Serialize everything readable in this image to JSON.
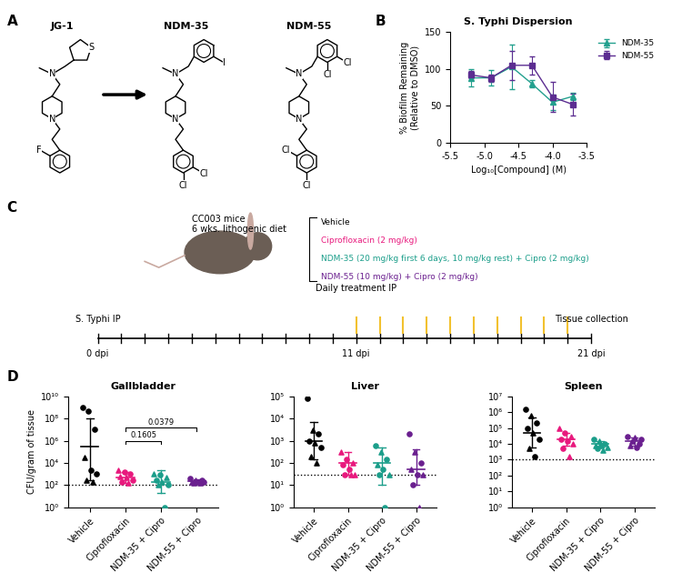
{
  "panel_labels": [
    "A",
    "B",
    "C",
    "D"
  ],
  "structures": [
    {
      "name": "JG-1",
      "atoms": [
        "N",
        "S",
        "N",
        "F"
      ]
    },
    {
      "name": "NDM-35",
      "atoms": [
        "N",
        "I",
        "N",
        "Cl",
        "Cl"
      ]
    },
    {
      "name": "NDM-55",
      "atoms": [
        "N",
        "Cl",
        "Cl",
        "N",
        "Cl",
        "Cl"
      ]
    }
  ],
  "timeline": {
    "mice": "CC003 mice",
    "diet": "6 wks. lithogenic diet",
    "treatments": [
      {
        "label": "Vehicle",
        "color": "#000000"
      },
      {
        "label": "Ciprofloxacin (2 mg/kg)",
        "color": "#e8197d"
      },
      {
        "label": "NDM-35 (20 mg/kg first 6 days, 10 mg/kg rest) + Cipro (2 mg/kg)",
        "color": "#1b9e8a"
      },
      {
        "label": "NDM-55 (10 mg/kg) + Cipro (2 mg/kg)",
        "color": "#6a1f8f"
      }
    ],
    "days": 21,
    "events": [
      {
        "day": 0,
        "label": "S. Typhi IP",
        "tick_label": "0 dpi"
      },
      {
        "day": 11,
        "label": "Daily treatment IP",
        "tick_label": "11 dpi"
      },
      {
        "day": 21,
        "label": "Tissue collection",
        "tick_label": "21 dpi"
      }
    ],
    "treatment_days": [
      11,
      12,
      13,
      14,
      15,
      16,
      17,
      18,
      19,
      20
    ],
    "treatment_color": "#f2c12e"
  },
  "chart_data": [
    {
      "type": "line",
      "title": "S. Typhi Dispersion",
      "x_label": "Log₁₀[Compound] (M)",
      "y_label": "% Biofilm Remaining\n(Relative to DMSO)",
      "xlim": [
        -5.5,
        -3.5
      ],
      "xticks": [
        -5.5,
        -5.0,
        -4.5,
        -4.0,
        -3.5
      ],
      "ylim": [
        0,
        150
      ],
      "yticks": [
        0,
        50,
        100,
        150
      ],
      "legend": "right",
      "x": [
        -5.2,
        -4.9,
        -4.6,
        -4.3,
        -4.0,
        -3.7
      ],
      "series": [
        {
          "name": "NDM-35",
          "color": "#23a08e",
          "marker": "triangle",
          "values": [
            88,
            88,
            103,
            80,
            55,
            63
          ],
          "error": [
            12,
            10,
            30,
            5,
            10,
            5
          ]
        },
        {
          "name": "NDM-55",
          "color": "#5c2d91",
          "marker": "square",
          "values": [
            92,
            88,
            105,
            105,
            62,
            52
          ],
          "error": [
            5,
            5,
            20,
            12,
            20,
            15
          ]
        }
      ]
    },
    {
      "type": "scatter",
      "title": "Gallbladder",
      "y_label": "CFU/gram of tissue",
      "categories": [
        "Vehicle",
        "Ciprofloxacin",
        "NDM-35 + Cipro",
        "NDM-55 + Cipro"
      ],
      "log": "y",
      "ylim": [
        1,
        10000000000.0
      ],
      "yticks": [
        {
          "value": 1,
          "label": "10⁰"
        },
        {
          "value": 100,
          "label": "10²"
        },
        {
          "value": 10000,
          "label": "10⁴"
        },
        {
          "value": 1000000,
          "label": "10⁶"
        },
        {
          "value": 100000000,
          "label": "10⁸"
        },
        {
          "value": 10000000000.0,
          "label": "10¹⁰"
        }
      ],
      "detection_limit": 100,
      "groups": [
        {
          "color": "#000000",
          "values": [
            1000000000.0,
            500000000.0,
            10000000.0,
            30000,
            2000,
            1000,
            300,
            200
          ],
          "marker": [
            "circle",
            "circle",
            "circle",
            "triangle",
            "circle",
            "circle",
            "triangle",
            "triangle"
          ],
          "mean": 300000,
          "error": [
            300,
            100000000
          ]
        },
        {
          "color": "#e8197d",
          "values": [
            2000,
            1500,
            1000,
            600,
            500,
            300,
            200,
            150
          ],
          "marker": [
            "triangle",
            "circle",
            "circle",
            "triangle",
            "triangle",
            "circle",
            "circle",
            "triangle"
          ],
          "mean": 500,
          "error": [
            150,
            1500
          ]
        },
        {
          "color": "#1b9e8a",
          "values": [
            1000,
            800,
            500,
            300,
            200,
            100,
            100,
            1
          ],
          "marker": [
            "triangle",
            "circle",
            "triangle",
            "circle",
            "triangle",
            "circle",
            "triangle",
            "circle"
          ],
          "mean": 200,
          "error": [
            20,
            2000
          ]
        },
        {
          "color": "#6a1f8f",
          "values": [
            400,
            300,
            300,
            200,
            200,
            200,
            150,
            150
          ],
          "marker": [
            "circle",
            "triangle",
            "circle",
            "triangle",
            "circle",
            "circle",
            "triangle",
            "triangle"
          ],
          "mean": 230,
          "error": [
            150,
            350
          ]
        }
      ],
      "comparisons": [
        {
          "between": [
            "Ciprofloxacin",
            "NDM-35 + Cipro"
          ],
          "label": "0.1605"
        },
        {
          "between": [
            "Ciprofloxacin",
            "NDM-55 + Cipro"
          ],
          "label": "0.0379"
        }
      ]
    },
    {
      "type": "scatter",
      "title": "Liver",
      "categories": [
        "Vehicle",
        "Ciprofloxacin",
        "NDM-35 + Cipro",
        "NDM-55 + Cipro"
      ],
      "log": "y",
      "ylim": [
        1,
        100000
      ],
      "yticks": [
        {
          "value": 1,
          "label": "10⁰"
        },
        {
          "value": 10,
          "label": "10¹"
        },
        {
          "value": 100,
          "label": "10²"
        },
        {
          "value": 1000,
          "label": "10³"
        },
        {
          "value": 10000,
          "label": "10⁴"
        },
        {
          "value": 100000,
          "label": "10⁵"
        }
      ],
      "detection_limit": 30,
      "groups": [
        {
          "color": "#000000",
          "values": [
            80000,
            3000,
            2000,
            1000,
            800,
            500,
            200,
            100
          ],
          "marker": [
            "circle",
            "triangle",
            "circle",
            "circle",
            "triangle",
            "circle",
            "triangle",
            "triangle"
          ],
          "mean": 1000,
          "error": [
            150,
            7000
          ]
        },
        {
          "color": "#e8197d",
          "values": [
            300,
            150,
            100,
            80,
            50,
            30,
            30,
            30
          ],
          "marker": [
            "triangle",
            "circle",
            "triangle",
            "circle",
            "circle",
            "triangle",
            "circle",
            "triangle"
          ],
          "mean": 100,
          "error": [
            30,
            300
          ]
        },
        {
          "color": "#1b9e8a",
          "values": [
            600,
            300,
            150,
            80,
            50,
            30,
            30,
            1
          ],
          "marker": [
            "circle",
            "triangle",
            "circle",
            "triangle",
            "circle",
            "triangle",
            "circle",
            "circle"
          ],
          "mean": 100,
          "error": [
            10,
            500
          ]
        },
        {
          "color": "#6a1f8f",
          "values": [
            2000,
            300,
            100,
            50,
            30,
            30,
            10,
            1
          ],
          "marker": [
            "circle",
            "triangle",
            "circle",
            "triangle",
            "circle",
            "triangle",
            "circle",
            "triangle"
          ],
          "mean": 50,
          "error": [
            10,
            400
          ]
        }
      ]
    },
    {
      "type": "scatter",
      "title": "Spleen",
      "categories": [
        "Vehicle",
        "Ciprofloxacin",
        "NDM-35 + Cipro",
        "NDM-55 + Cipro"
      ],
      "log": "y",
      "ylim": [
        1,
        10000000
      ],
      "yticks": [
        {
          "value": 1,
          "label": "10⁰"
        },
        {
          "value": 10,
          "label": "10¹"
        },
        {
          "value": 100,
          "label": "10²"
        },
        {
          "value": 1000,
          "label": "10³"
        },
        {
          "value": 10000,
          "label": "10⁴"
        },
        {
          "value": 100000,
          "label": "10⁵"
        },
        {
          "value": 1000000,
          "label": "10⁶"
        },
        {
          "value": 10000000,
          "label": "10⁷"
        }
      ],
      "detection_limit": 1000,
      "groups": [
        {
          "color": "#000000",
          "values": [
            1500000,
            600000,
            200000,
            100000,
            50000,
            20000,
            5000,
            1500
          ],
          "marker": [
            "circle",
            "triangle",
            "circle",
            "circle",
            "triangle",
            "circle",
            "triangle",
            "circle"
          ],
          "mean": 50000,
          "error": [
            6000,
            500000
          ]
        },
        {
          "color": "#e8197d",
          "values": [
            100000,
            50000,
            30000,
            20000,
            15000,
            10000,
            5000,
            1500
          ],
          "marker": [
            "triangle",
            "circle",
            "triangle",
            "circle",
            "circle",
            "triangle",
            "circle",
            "triangle"
          ],
          "mean": 20000,
          "error": [
            8000,
            50000
          ]
        },
        {
          "color": "#1b9e8a",
          "values": [
            20000,
            15000,
            10000,
            8000,
            8000,
            6000,
            5000,
            4000
          ],
          "marker": [
            "circle",
            "triangle",
            "circle",
            "triangle",
            "circle",
            "triangle",
            "circle",
            "triangle"
          ],
          "mean": 10000,
          "error": [
            6000,
            15000
          ]
        },
        {
          "color": "#6a1f8f",
          "values": [
            30000,
            25000,
            20000,
            15000,
            10000,
            8000,
            6000
          ],
          "marker": [
            "circle",
            "triangle",
            "circle",
            "triangle",
            "circle",
            "triangle",
            "circle"
          ],
          "mean": 15000,
          "error": [
            8000,
            25000
          ]
        }
      ]
    }
  ]
}
